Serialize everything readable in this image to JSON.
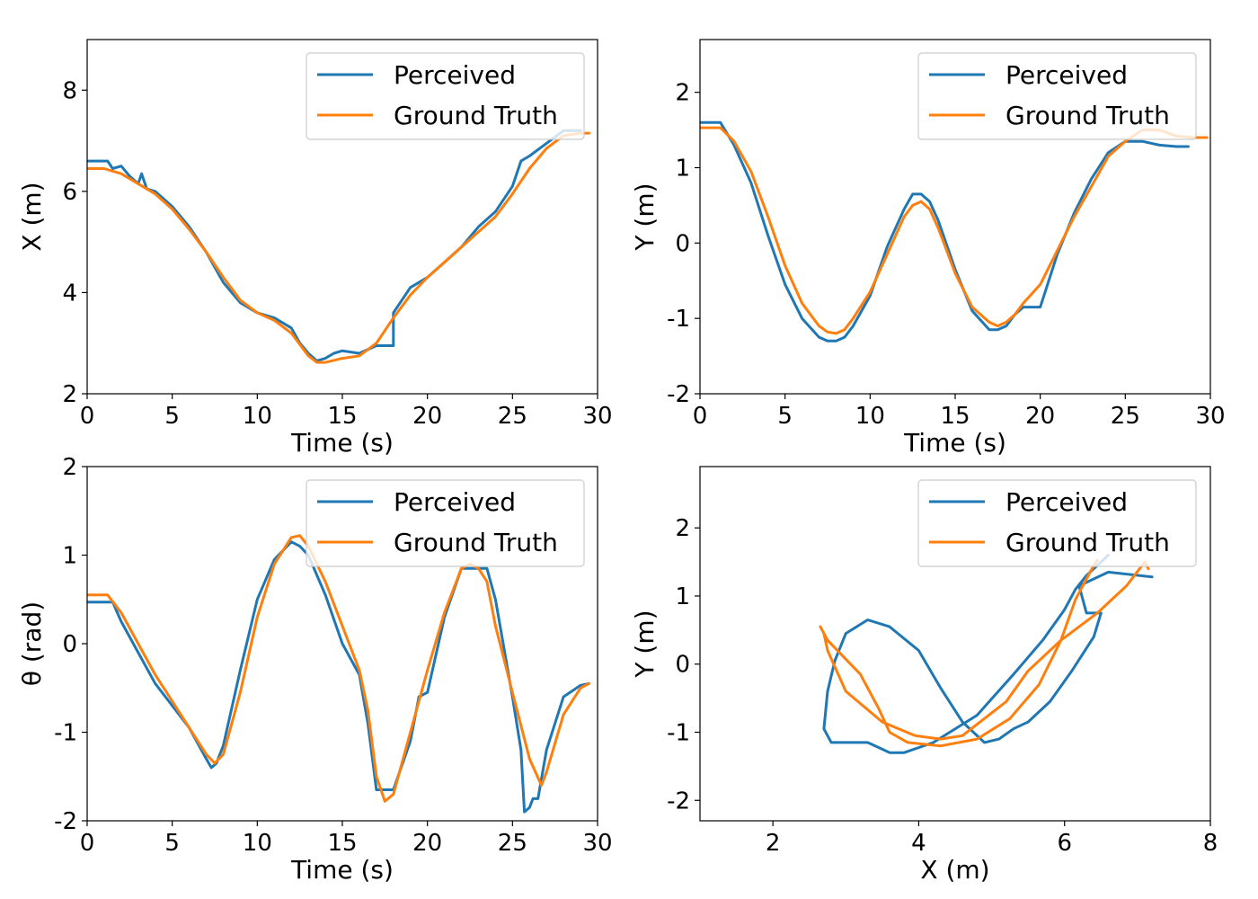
{
  "colors": {
    "perceived": "#1f77b4",
    "ground_truth": "#ff7f0e"
  },
  "legend": {
    "perceived": "Perceived",
    "ground_truth": "Ground Truth"
  },
  "chart_data": [
    {
      "id": "x-vs-time",
      "type": "line",
      "xlabel": "Time (s)",
      "ylabel": "X (m)",
      "xlim": [
        0,
        30
      ],
      "ylim": [
        2,
        9
      ],
      "xticks": [
        0,
        5,
        10,
        15,
        20,
        25,
        30
      ],
      "xticklabels": [
        "0",
        "5",
        "10",
        "15",
        "20",
        "25",
        "30"
      ],
      "yticks": [
        2,
        4,
        6,
        8
      ],
      "yticklabels": [
        "2",
        "4",
        "6",
        "8"
      ],
      "legend_position": "top-right",
      "series": [
        {
          "name": "Perceived",
          "x": [
            0,
            1.2,
            1.5,
            2,
            2.5,
            3,
            3.2,
            3.5,
            4,
            5,
            6,
            7,
            8,
            9,
            10,
            11,
            12,
            12.5,
            13,
            13.5,
            14,
            14.5,
            15,
            16,
            17,
            18,
            18,
            19,
            20,
            21,
            22,
            23,
            24,
            25,
            25.5,
            26,
            27,
            28,
            29
          ],
          "y": [
            6.6,
            6.6,
            6.45,
            6.5,
            6.3,
            6.15,
            6.35,
            6.05,
            6.0,
            5.7,
            5.3,
            4.8,
            4.2,
            3.8,
            3.6,
            3.5,
            3.3,
            3.0,
            2.8,
            2.65,
            2.7,
            2.8,
            2.85,
            2.8,
            2.95,
            2.95,
            3.6,
            4.1,
            4.3,
            4.6,
            4.9,
            5.3,
            5.6,
            6.1,
            6.6,
            6.7,
            6.95,
            7.2,
            7.2
          ]
        },
        {
          "name": "Ground Truth",
          "x": [
            0,
            1,
            2,
            3,
            4,
            5,
            6,
            7,
            8,
            9,
            10,
            11,
            12,
            13,
            13.5,
            14,
            15,
            16,
            17,
            18,
            19,
            20,
            21,
            22,
            23,
            24,
            25,
            26,
            27,
            28,
            29,
            29.5
          ],
          "y": [
            6.45,
            6.45,
            6.35,
            6.15,
            5.95,
            5.65,
            5.25,
            4.8,
            4.3,
            3.85,
            3.6,
            3.45,
            3.2,
            2.75,
            2.62,
            2.62,
            2.7,
            2.75,
            3.0,
            3.5,
            3.95,
            4.3,
            4.6,
            4.9,
            5.2,
            5.5,
            5.95,
            6.45,
            6.85,
            7.1,
            7.15,
            7.15
          ]
        }
      ]
    },
    {
      "id": "y-vs-time",
      "type": "line",
      "xlabel": "Time (s)",
      "ylabel": "Y (m)",
      "xlim": [
        0,
        30
      ],
      "ylim": [
        -2,
        2.7
      ],
      "xticks": [
        0,
        5,
        10,
        15,
        20,
        25,
        30
      ],
      "xticklabels": [
        "0",
        "5",
        "10",
        "15",
        "20",
        "25",
        "30"
      ],
      "yticks": [
        -2,
        -1,
        0,
        1,
        2
      ],
      "yticklabels": [
        "-2",
        "-1",
        "0",
        "1",
        "2"
      ],
      "legend_position": "top-right",
      "series": [
        {
          "name": "Perceived",
          "x": [
            0,
            1.2,
            2,
            3,
            4,
            5,
            6,
            7,
            7.5,
            8,
            8.5,
            9,
            10,
            11,
            12,
            12.5,
            13,
            13.5,
            14,
            15,
            16,
            17,
            17.5,
            18,
            18.5,
            19,
            20,
            21,
            22,
            23,
            24,
            25,
            26,
            27,
            28,
            28.7
          ],
          "y": [
            1.6,
            1.6,
            1.3,
            0.8,
            0.1,
            -0.55,
            -1.0,
            -1.25,
            -1.3,
            -1.3,
            -1.25,
            -1.1,
            -0.7,
            -0.05,
            0.45,
            0.65,
            0.65,
            0.55,
            0.3,
            -0.35,
            -0.9,
            -1.15,
            -1.15,
            -1.1,
            -0.95,
            -0.85,
            -0.85,
            -0.15,
            0.4,
            0.85,
            1.2,
            1.35,
            1.35,
            1.3,
            1.28,
            1.28
          ]
        },
        {
          "name": "Ground Truth",
          "x": [
            0,
            1.2,
            2,
            3,
            4,
            5,
            6,
            7,
            7.5,
            8,
            8.5,
            9,
            10,
            11,
            12,
            12.5,
            13,
            13.5,
            14,
            15,
            16,
            17,
            17.5,
            18,
            18.5,
            19,
            20,
            21,
            22,
            23,
            24,
            25,
            26,
            27,
            28,
            29,
            29.8
          ],
          "y": [
            1.53,
            1.53,
            1.35,
            0.95,
            0.35,
            -0.3,
            -0.8,
            -1.1,
            -1.18,
            -1.2,
            -1.15,
            -1.0,
            -0.65,
            -0.15,
            0.35,
            0.5,
            0.55,
            0.45,
            0.2,
            -0.4,
            -0.85,
            -1.05,
            -1.1,
            -1.05,
            -0.95,
            -0.8,
            -0.55,
            -0.1,
            0.35,
            0.75,
            1.15,
            1.35,
            1.5,
            1.5,
            1.42,
            1.4,
            1.4
          ]
        }
      ]
    },
    {
      "id": "theta-vs-time",
      "type": "line",
      "xlabel": "Time (s)",
      "ylabel": "θ (rad)",
      "xlim": [
        0,
        30
      ],
      "ylim": [
        -2,
        2
      ],
      "xticks": [
        0,
        5,
        10,
        15,
        20,
        25,
        30
      ],
      "xticklabels": [
        "0",
        "5",
        "10",
        "15",
        "20",
        "25",
        "30"
      ],
      "yticks": [
        -2,
        -1,
        0,
        1,
        2
      ],
      "yticklabels": [
        "-2",
        "-1",
        "0",
        "1",
        "2"
      ],
      "legend_position": "top-right",
      "series": [
        {
          "name": "Perceived",
          "x": [
            0,
            1.5,
            2,
            3,
            4,
            5,
            6,
            7,
            7.3,
            7.6,
            8,
            9,
            10,
            11,
            12,
            12.5,
            13,
            14,
            15,
            16,
            16.5,
            17,
            17.5,
            18,
            19,
            19.5,
            20,
            20,
            21,
            22,
            23,
            23.5,
            24,
            25,
            25.5,
            25.7,
            26,
            26.2,
            26.5,
            27,
            28,
            29,
            29.5
          ],
          "y": [
            0.47,
            0.47,
            0.25,
            -0.1,
            -0.45,
            -0.7,
            -0.95,
            -1.3,
            -1.4,
            -1.35,
            -1.15,
            -0.3,
            0.5,
            0.95,
            1.15,
            1.1,
            1.0,
            0.55,
            0.0,
            -0.35,
            -0.9,
            -1.65,
            -1.65,
            -1.65,
            -1.1,
            -0.6,
            -0.55,
            -0.55,
            0.3,
            0.85,
            0.85,
            0.85,
            0.5,
            -0.6,
            -1.2,
            -1.9,
            -1.85,
            -1.75,
            -1.75,
            -1.2,
            -0.6,
            -0.47,
            -0.45
          ]
        },
        {
          "name": "Ground Truth",
          "x": [
            0,
            1.2,
            2,
            3,
            4,
            5,
            6,
            7,
            7.5,
            8,
            9,
            10,
            11,
            12,
            12.5,
            13,
            14,
            15,
            16,
            16.5,
            17,
            17.5,
            18,
            19,
            20,
            21,
            22,
            22.5,
            23,
            23.5,
            24,
            25,
            26,
            26.7,
            27,
            28,
            29,
            29.5
          ],
          "y": [
            0.55,
            0.55,
            0.35,
            0.0,
            -0.35,
            -0.65,
            -0.95,
            -1.25,
            -1.35,
            -1.25,
            -0.55,
            0.3,
            0.9,
            1.2,
            1.22,
            1.1,
            0.7,
            0.2,
            -0.3,
            -0.75,
            -1.5,
            -1.78,
            -1.7,
            -1.0,
            -0.3,
            0.35,
            0.85,
            0.9,
            0.85,
            0.7,
            0.2,
            -0.55,
            -1.3,
            -1.6,
            -1.45,
            -0.8,
            -0.5,
            -0.45
          ]
        }
      ]
    },
    {
      "id": "y-vs-x",
      "type": "line",
      "xlabel": "X (m)",
      "ylabel": "Y (m)",
      "xlim": [
        1,
        8
      ],
      "ylim": [
        -2.3,
        2.9
      ],
      "xticks": [
        2,
        4,
        6,
        8
      ],
      "xticklabels": [
        "2",
        "4",
        "6",
        "8"
      ],
      "yticks": [
        -2,
        -1,
        0,
        1,
        2
      ],
      "yticklabels": [
        "-2",
        "-1",
        "0",
        "1",
        "2"
      ],
      "legend_position": "top-right",
      "series": [
        {
          "name": "Perceived",
          "x": [
            6.6,
            6.5,
            6.3,
            6.15,
            6.0,
            5.7,
            5.3,
            4.8,
            4.2,
            3.8,
            3.6,
            3.5,
            3.3,
            3.0,
            2.8,
            2.7,
            2.75,
            2.85,
            3.0,
            3.3,
            3.6,
            4.0,
            4.3,
            4.6,
            4.9,
            5.1,
            5.3,
            5.5,
            5.8,
            6.1,
            6.4,
            6.5,
            6.3,
            6.2,
            6.6,
            7.2
          ],
          "y": [
            1.6,
            1.5,
            1.3,
            1.1,
            0.8,
            0.35,
            -0.15,
            -0.75,
            -1.15,
            -1.3,
            -1.3,
            -1.25,
            -1.15,
            -1.15,
            -1.15,
            -0.95,
            -0.4,
            0.05,
            0.45,
            0.65,
            0.55,
            0.2,
            -0.35,
            -0.85,
            -1.15,
            -1.1,
            -0.95,
            -0.85,
            -0.55,
            -0.1,
            0.4,
            0.75,
            0.75,
            1.15,
            1.35,
            1.28
          ]
        },
        {
          "name": "Ground Truth",
          "x": [
            6.45,
            6.35,
            6.15,
            5.95,
            5.65,
            5.25,
            4.8,
            4.3,
            3.85,
            3.6,
            3.45,
            3.2,
            2.75,
            2.65,
            2.7,
            2.75,
            3.0,
            3.5,
            3.95,
            4.3,
            4.6,
            4.9,
            5.2,
            5.5,
            5.95,
            6.45,
            6.85,
            7.1,
            7.15
          ],
          "y": [
            1.53,
            1.35,
            0.95,
            0.35,
            -0.3,
            -0.8,
            -1.1,
            -1.2,
            -1.15,
            -1.0,
            -0.65,
            -0.15,
            0.35,
            0.55,
            0.45,
            0.2,
            -0.4,
            -0.85,
            -1.05,
            -1.1,
            -1.05,
            -0.8,
            -0.55,
            -0.1,
            0.35,
            0.75,
            1.15,
            1.5,
            1.4
          ]
        }
      ]
    }
  ]
}
